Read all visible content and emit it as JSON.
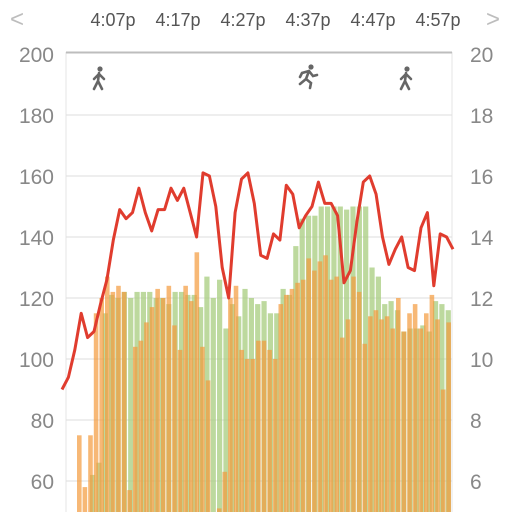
{
  "header": {
    "prev_icon": "chevron-left-icon",
    "next_icon": "chevron-right-icon",
    "prev_glyph": "<",
    "next_glyph": ">",
    "time_labels": [
      "4:07p",
      "4:17p",
      "4:27p",
      "4:37p",
      "4:47p",
      "4:57p"
    ]
  },
  "activity_icons": [
    "walking-icon",
    "running-icon",
    "walking-icon"
  ],
  "colors": {
    "heart_rate": "#e03c2e",
    "bar_green": "#a7cc7d",
    "bar_orange": "#f39a3c",
    "bar_olive": "#a8a447",
    "axis_text": "#888888",
    "grid": "#dddddd"
  },
  "chart_data": {
    "type": "bar",
    "left_axis": {
      "ticks": [
        60,
        80,
        100,
        120,
        140,
        160,
        180,
        200
      ],
      "range": [
        50,
        200
      ]
    },
    "right_axis": {
      "ticks": [
        6,
        8,
        10,
        12,
        14,
        16,
        18,
        20
      ],
      "range": [
        5,
        20
      ]
    },
    "x_ticks": [
      "4:07p",
      "4:17p",
      "4:27p",
      "4:37p",
      "4:47p",
      "4:57p"
    ],
    "series": [
      {
        "values": [
          62,
          66,
          115,
          121,
          120,
          122,
          120,
          122,
          122,
          122,
          120,
          120,
          118,
          122,
          122,
          121,
          121,
          117,
          127,
          120,
          126,
          110,
          118,
          114,
          123,
          120,
          118,
          119,
          115,
          115,
          123,
          121,
          137,
          146,
          147,
          147,
          150,
          150,
          150,
          150,
          149,
          150,
          150,
          150,
          130,
          127,
          118,
          119,
          116,
          109,
          110,
          110,
          111,
          109,
          119,
          118,
          116
        ]
      },
      {
        "values": [
          75,
          58,
          75,
          115,
          120,
          127,
          122,
          124,
          122,
          57,
          104,
          106,
          112,
          117,
          123,
          120,
          124,
          111,
          103,
          124,
          119,
          135,
          104,
          93,
          48,
          51,
          63,
          120,
          124,
          103,
          100,
          100,
          106,
          106,
          103,
          100,
          118,
          121,
          123,
          125,
          126,
          133,
          129,
          132,
          134,
          126,
          127,
          107,
          113,
          127,
          122,
          105,
          114,
          116,
          113,
          114,
          110,
          120,
          109,
          115,
          118,
          110,
          115,
          121,
          113,
          90,
          112
        ]
      },
      {
        "values": [
          93,
          94,
          100,
          111,
          112,
          108,
          104,
          106,
          110,
          121,
          130,
          139,
          135,
          136,
          140,
          142,
          138,
          133,
          140,
          141,
          140,
          145,
          140,
          142,
          135,
          130,
          148,
          147,
          150,
          143,
          141,
          135,
          140,
          145,
          138,
          130,
          132,
          143,
          148,
          147,
          145,
          130,
          140,
          143,
          148,
          146,
          150,
          141,
          137,
          135,
          138,
          140,
          130,
          127,
          135,
          143,
          146,
          136,
          131,
          129,
          125,
          130,
          128,
          134,
          141,
          140,
          138
        ]
      },
      {
        "values": [
          90,
          94,
          103,
          115,
          107,
          109,
          118,
          126,
          139,
          149,
          146,
          148,
          156,
          148,
          142,
          149,
          149,
          156,
          152,
          156,
          148,
          140,
          161,
          160,
          150,
          130,
          120,
          148,
          159,
          161,
          151,
          134,
          133,
          141,
          139,
          157,
          154,
          143,
          147,
          150,
          158,
          151,
          151,
          147,
          125,
          129,
          145,
          158,
          160,
          154,
          140,
          131,
          136,
          140,
          130,
          129,
          143,
          148,
          124,
          141,
          140,
          136
        ]
      }
    ]
  }
}
